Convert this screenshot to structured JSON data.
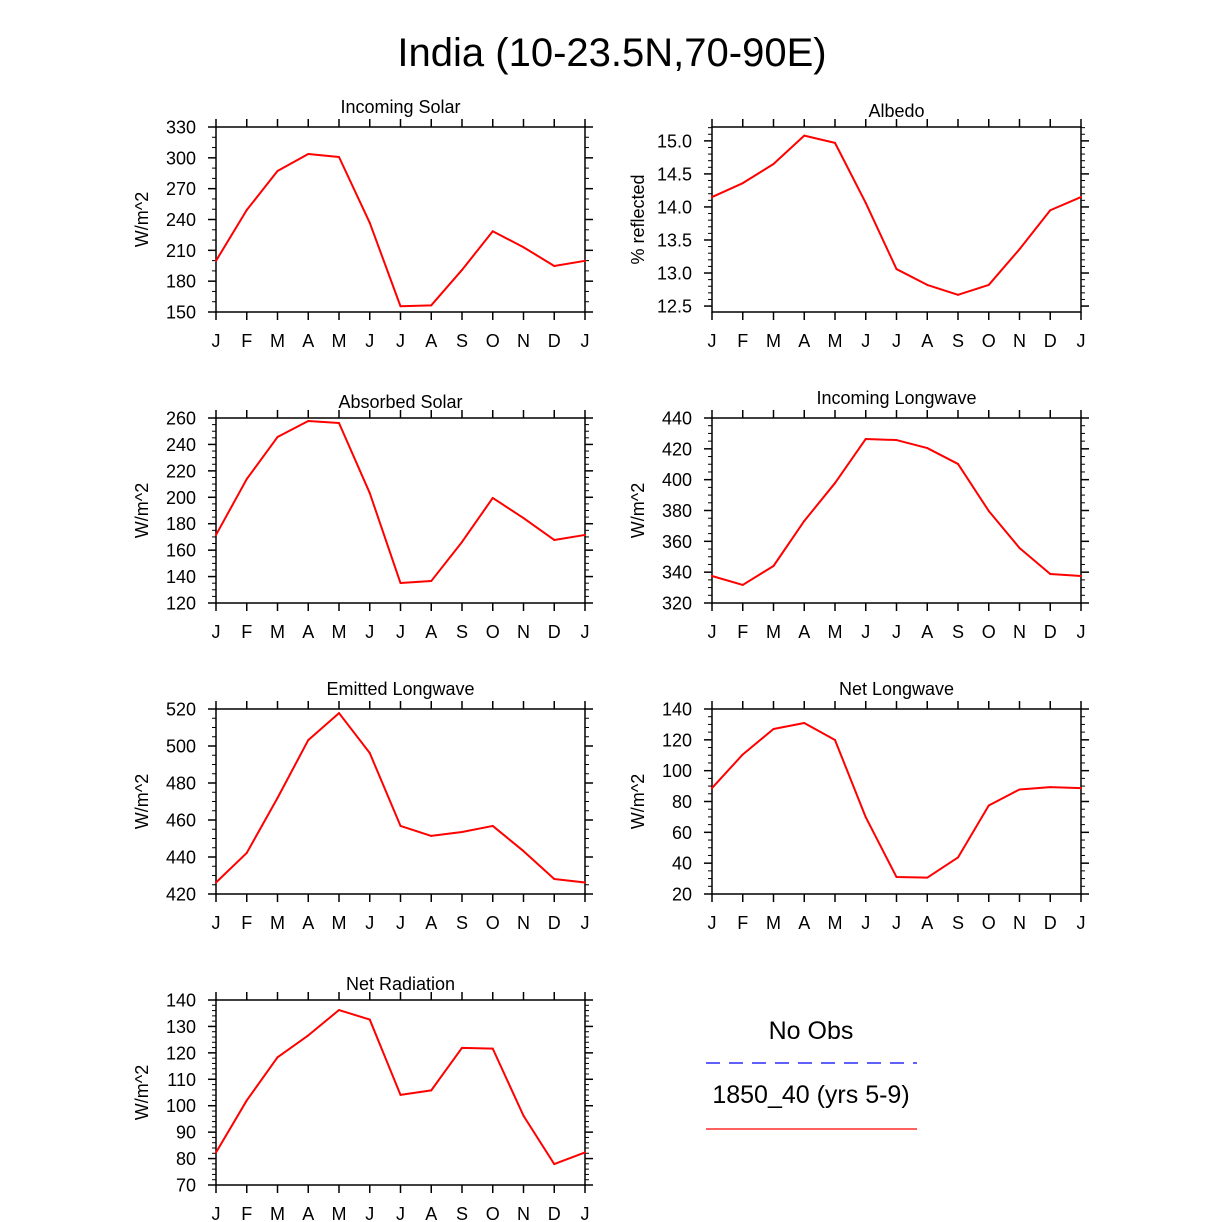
{
  "figure": {
    "title": "India (10-23.5N,70-90E)",
    "legend": [
      {
        "label": "No Obs",
        "dashed": true
      },
      {
        "label": "1850_40 (yrs 5-9)",
        "dashed": false
      }
    ]
  },
  "colors": {
    "model": "#ff0000",
    "obs": "#0000ff",
    "axis": "#000000",
    "background": "#ffffff"
  },
  "chart_data": [
    {
      "type": "line",
      "title": "Incoming Solar",
      "ylabel": "W/m^2",
      "categories": [
        "J",
        "F",
        "M",
        "A",
        "M",
        "J",
        "J",
        "A",
        "S",
        "O",
        "N",
        "D",
        "J"
      ],
      "ylim": [
        150,
        330
      ],
      "ytick_labels": [
        "150",
        "180",
        "210",
        "240",
        "270",
        "300",
        "330"
      ],
      "values": [
        199.8,
        249.2,
        287.2,
        303.7,
        300.8,
        236.8,
        155.6,
        156.5,
        190.9,
        228.6,
        213.0,
        194.8,
        199.8
      ]
    },
    {
      "type": "line",
      "title": "Albedo",
      "ylabel": "% reflected",
      "categories": [
        "J",
        "F",
        "M",
        "A",
        "M",
        "J",
        "J",
        "A",
        "S",
        "O",
        "N",
        "D",
        "J"
      ],
      "ylim": [
        12.41,
        15.21
      ],
      "ytick_labels": [
        "12.5",
        "13.0",
        "13.5",
        "14.0",
        "14.5",
        "15.0"
      ],
      "values": [
        14.15,
        14.36,
        14.65,
        15.08,
        14.97,
        14.06,
        13.06,
        12.82,
        12.67,
        12.82,
        13.36,
        13.95,
        14.15
      ]
    },
    {
      "type": "line",
      "title": "Absorbed Solar",
      "ylabel": "W/m^2",
      "categories": [
        "J",
        "F",
        "M",
        "A",
        "M",
        "J",
        "J",
        "A",
        "S",
        "O",
        "N",
        "D",
        "J"
      ],
      "ylim": [
        120,
        260
      ],
      "ytick_labels": [
        "120",
        "140",
        "160",
        "180",
        "200",
        "220",
        "240",
        "260"
      ],
      "values": [
        171.5,
        213.8,
        245.6,
        257.7,
        256.2,
        203.2,
        135.1,
        136.6,
        166.2,
        199.5,
        184.3,
        167.7,
        171.5
      ]
    },
    {
      "type": "line",
      "title": "Incoming Longwave",
      "ylabel": "W/m^2",
      "categories": [
        "J",
        "F",
        "M",
        "A",
        "M",
        "J",
        "J",
        "A",
        "S",
        "O",
        "N",
        "D",
        "J"
      ],
      "ylim": [
        320,
        440
      ],
      "ytick_labels": [
        "320",
        "340",
        "360",
        "380",
        "400",
        "420",
        "440"
      ],
      "values": [
        337.5,
        331.7,
        344.0,
        373.2,
        397.8,
        426.4,
        425.7,
        420.5,
        410.2,
        379.7,
        355.7,
        338.8,
        337.5
      ]
    },
    {
      "type": "line",
      "title": "Emitted Longwave",
      "ylabel": "W/m^2",
      "categories": [
        "J",
        "F",
        "M",
        "A",
        "M",
        "J",
        "J",
        "A",
        "S",
        "O",
        "N",
        "D",
        "J"
      ],
      "ylim": [
        420,
        520
      ],
      "ytick_labels": [
        "420",
        "440",
        "460",
        "480",
        "500",
        "520"
      ],
      "values": [
        426.2,
        442.2,
        471.9,
        503.2,
        517.8,
        496.2,
        456.8,
        451.4,
        453.5,
        456.8,
        443.2,
        428.1,
        426.2
      ]
    },
    {
      "type": "line",
      "title": "Net Longwave",
      "ylabel": "W/m^2",
      "categories": [
        "J",
        "F",
        "M",
        "A",
        "M",
        "J",
        "J",
        "A",
        "S",
        "O",
        "N",
        "D",
        "J"
      ],
      "ylim": [
        20,
        140
      ],
      "ytick_labels": [
        "20",
        "40",
        "60",
        "80",
        "100",
        "120",
        "140"
      ],
      "values": [
        88.7,
        110.5,
        127.0,
        130.9,
        119.9,
        69.8,
        31.0,
        30.6,
        43.7,
        77.4,
        87.8,
        89.3,
        88.7
      ]
    },
    {
      "type": "line",
      "title": "Net Radiation",
      "ylabel": "W/m^2",
      "categories": [
        "J",
        "F",
        "M",
        "A",
        "M",
        "J",
        "J",
        "A",
        "S",
        "O",
        "N",
        "D",
        "J"
      ],
      "ylim": [
        70,
        140
      ],
      "ytick_labels": [
        "70",
        "80",
        "90",
        "100",
        "110",
        "120",
        "130",
        "140"
      ],
      "values": [
        82.3,
        102.0,
        118.3,
        126.6,
        136.2,
        132.6,
        104.1,
        105.8,
        121.9,
        121.6,
        96.2,
        77.9,
        82.3
      ]
    }
  ]
}
